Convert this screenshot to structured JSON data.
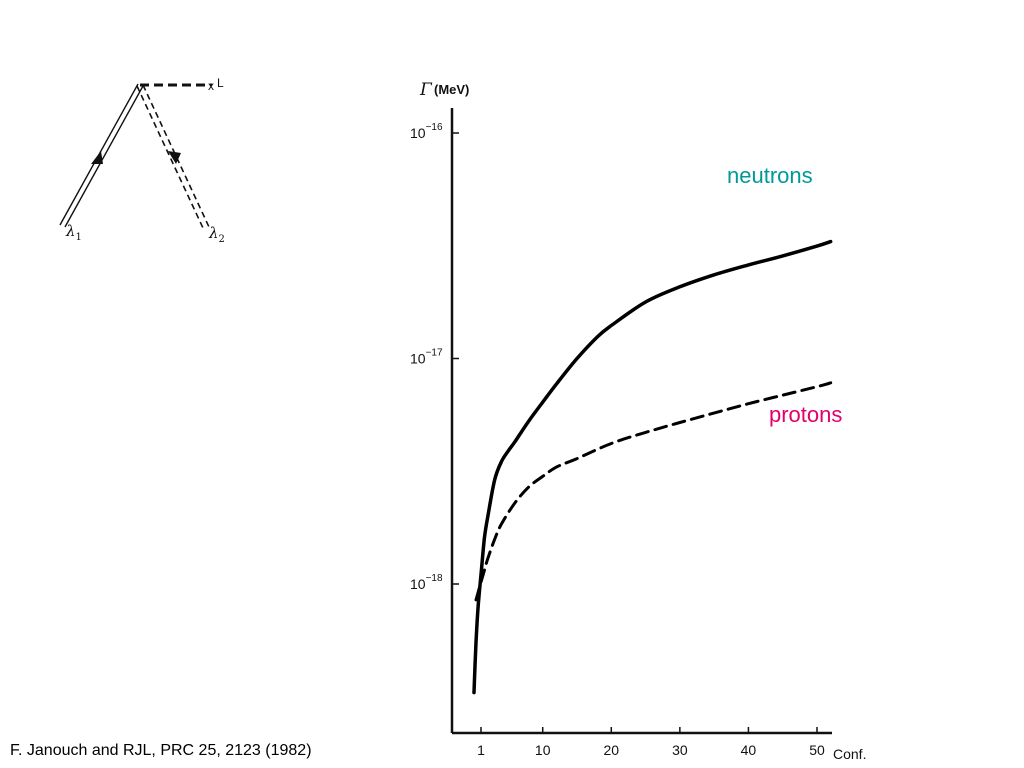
{
  "diagram": {
    "vertex_label": "L",
    "line1_label": "λ",
    "line1_sub": "1",
    "line2_label": "λ",
    "line2_sub": "2"
  },
  "chart_data": {
    "type": "line",
    "ylabel_symbol": "Γ",
    "ylabel_unit": "(MeV)",
    "xlabel": "Conf.",
    "yscale": "log",
    "xlim": [
      0.5,
      52
    ],
    "ylim": [
      3e-19,
      1.6e-16
    ],
    "xticks": [
      1,
      10,
      20,
      30,
      40,
      50
    ],
    "yticks": [
      {
        "value": 1e-16,
        "base": "10",
        "exp": "−16"
      },
      {
        "value": 1e-17,
        "base": "10",
        "exp": "−17"
      },
      {
        "value": 1e-18,
        "base": "10",
        "exp": "−18"
      }
    ],
    "series": [
      {
        "name": "neutrons",
        "style": "solid",
        "color": "#009999",
        "x": [
          0.3,
          0.5,
          0.7,
          1,
          1.5,
          2,
          3,
          4,
          5,
          6,
          8,
          10,
          12,
          15,
          18,
          20,
          25,
          30,
          35,
          40,
          45,
          50,
          52
        ],
        "y": [
          3.3e-19,
          5.5e-19,
          7.8e-19,
          1.1e-18,
          1.6e-18,
          2e-18,
          2.9e-18,
          3.5e-18,
          3.9e-18,
          4.3e-18,
          5.3e-18,
          6.4e-18,
          7.7e-18,
          1e-17,
          1.25e-17,
          1.4e-17,
          1.78e-17,
          2.08e-17,
          2.35e-17,
          2.6e-17,
          2.85e-17,
          3.15e-17,
          3.3e-17
        ]
      },
      {
        "name": "protons",
        "style": "dashed",
        "color": "#e2006b",
        "x": [
          0.5,
          1,
          1.5,
          2,
          3,
          4,
          6,
          8,
          10,
          12,
          15,
          20,
          25,
          30,
          40,
          50,
          52
        ],
        "y": [
          8.5e-19,
          1.02e-18,
          1.15e-18,
          1.3e-18,
          1.58e-18,
          1.85e-18,
          2.3e-18,
          2.7e-18,
          3e-18,
          3.3e-18,
          3.6e-18,
          4.2e-18,
          4.7e-18,
          5.2e-18,
          6.3e-18,
          7.5e-18,
          7.8e-18
        ]
      }
    ]
  },
  "citation": "F. Janouch and RJL, PRC 25, 2123 (1982)"
}
